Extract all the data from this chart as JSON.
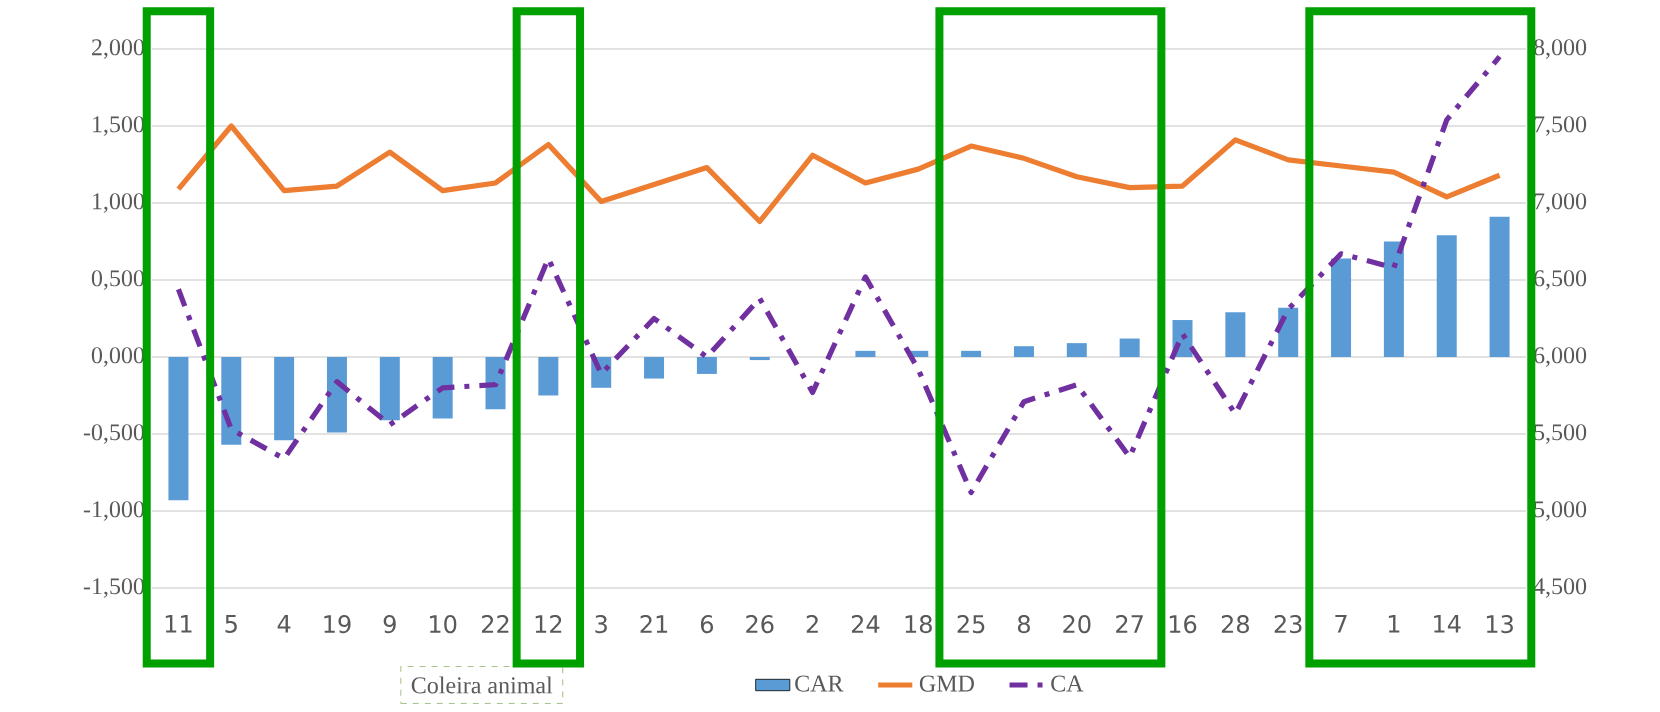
{
  "chart_data": {
    "type": "bar",
    "xlabel": "Coleira animal",
    "categories": [
      "11",
      "5",
      "4",
      "19",
      "9",
      "10",
      "22",
      "12",
      "3",
      "21",
      "6",
      "26",
      "2",
      "24",
      "18",
      "25",
      "8",
      "20",
      "27",
      "16",
      "28",
      "23",
      "7",
      "1",
      "14",
      "13"
    ],
    "series": [
      {
        "name": "CAR",
        "color": "#5b9bd5",
        "values": [
          -0.93,
          -0.57,
          -0.54,
          -0.49,
          -0.41,
          -0.4,
          -0.34,
          -0.25,
          -0.2,
          -0.14,
          -0.11,
          -0.02,
          0.0,
          0.04,
          0.04,
          0.04,
          0.07,
          0.09,
          0.12,
          0.24,
          0.29,
          0.32,
          0.64,
          0.75,
          0.79,
          0.91
        ]
      },
      {
        "name": "GMD",
        "type": "line",
        "color": "#ed7d31",
        "line_style": "solid",
        "values": [
          1.09,
          1.5,
          1.08,
          1.11,
          1.33,
          1.08,
          1.13,
          1.38,
          1.01,
          1.12,
          1.23,
          0.88,
          1.31,
          1.13,
          1.22,
          1.37,
          1.29,
          1.17,
          1.1,
          1.11,
          1.41,
          1.28,
          1.24,
          1.2,
          1.04,
          1.18
        ]
      },
      {
        "name": "CA",
        "type": "line",
        "color": "#7030a0",
        "axis": "y2",
        "line_style": "dashed",
        "values": [
          6.44,
          5.53,
          5.34,
          5.84,
          5.56,
          5.8,
          5.82,
          6.64,
          5.89,
          6.25,
          6.0,
          6.38,
          5.77,
          6.52,
          5.92,
          5.12,
          5.71,
          5.82,
          5.35,
          6.15,
          5.63,
          6.31,
          6.67,
          6.58,
          7.54,
          7.95
        ]
      }
    ],
    "ylim": [
      -1.5,
      2.0
    ],
    "yticks": [
      {
        "value": -1.5,
        "label": "-1,500"
      },
      {
        "value": -1.0,
        "label": "-1,000"
      },
      {
        "value": -0.5,
        "label": "-0,500"
      },
      {
        "value": 0,
        "label": "0,000"
      },
      {
        "value": 0.5,
        "label": "0,500"
      },
      {
        "value": 1.0,
        "label": "1,000"
      },
      {
        "value": 1.5,
        "label": "1,500"
      },
      {
        "value": 2.0,
        "label": "2,000"
      }
    ],
    "y2lim": [
      4.5,
      8.0
    ],
    "y2ticks": [
      {
        "value": 4.5,
        "label": "4,500"
      },
      {
        "value": 5.0,
        "label": "5,000"
      },
      {
        "value": 5.5,
        "label": "5,500"
      },
      {
        "value": 6.0,
        "label": "6,000"
      },
      {
        "value": 6.5,
        "label": "6,500"
      },
      {
        "value": 7.0,
        "label": "7,000"
      },
      {
        "value": 7.5,
        "label": "7,500"
      },
      {
        "value": 8.0,
        "label": "8,000"
      }
    ],
    "grid": "y",
    "legend": "bottom"
  }
}
